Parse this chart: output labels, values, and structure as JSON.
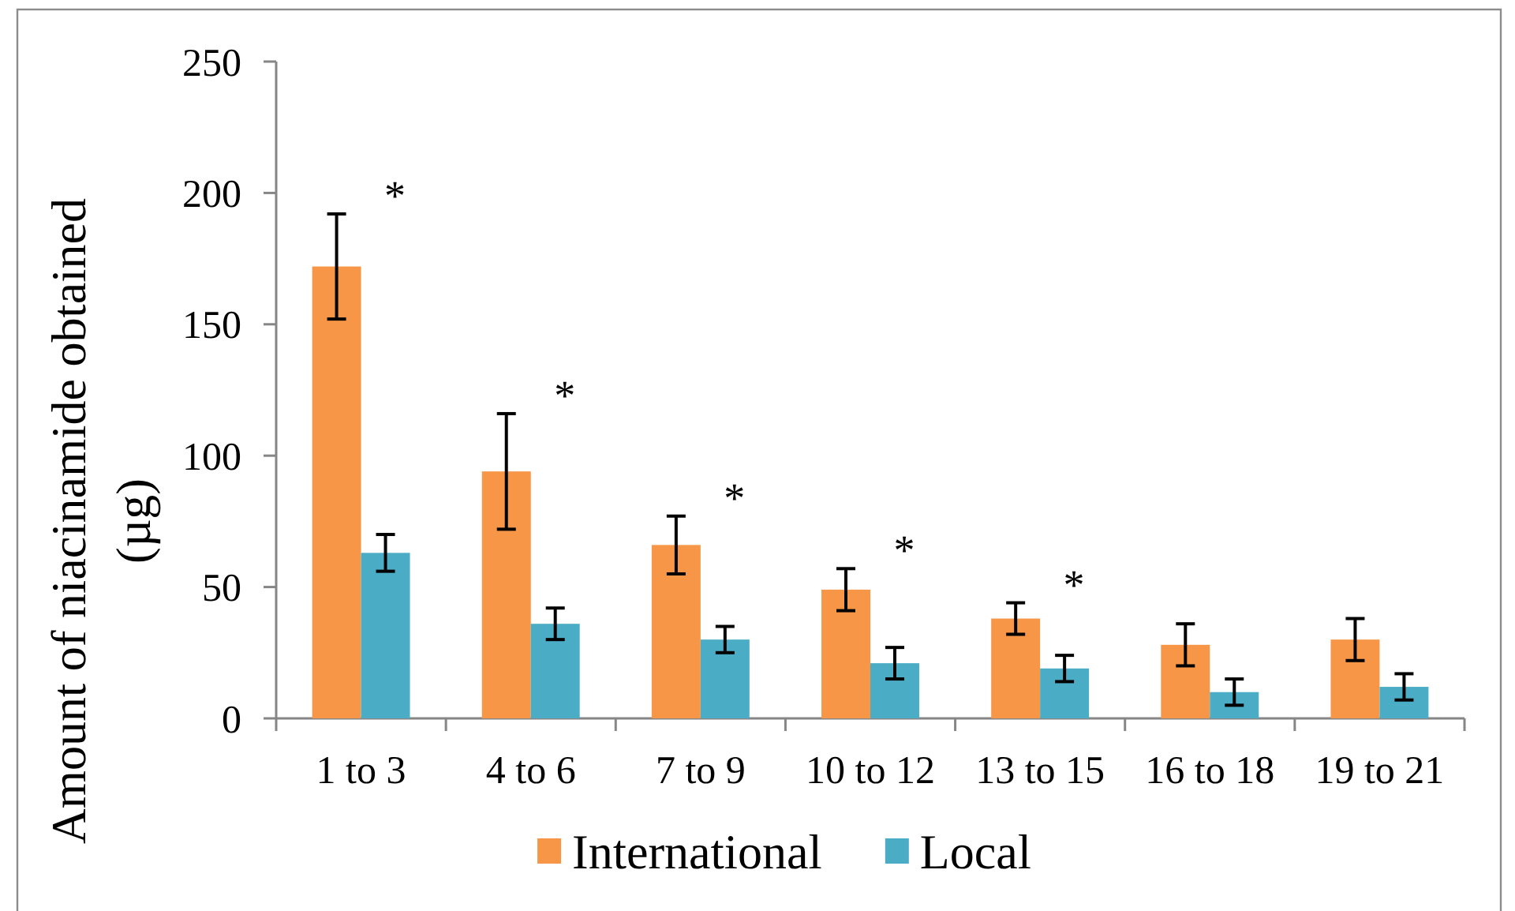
{
  "chart_data": {
    "type": "bar",
    "ylabel": "Amount of niacinamide obtained (µg)",
    "categories": [
      "1 to 3",
      "4 to 6",
      "7 to 9",
      "10 to 12",
      "13 to 15",
      "16 to 18",
      "19 to 21"
    ],
    "series": [
      {
        "name": "International",
        "color": "#f79646",
        "values": [
          172,
          94,
          66,
          49,
          38,
          28,
          30
        ],
        "errors": [
          20,
          22,
          11,
          8,
          6,
          8,
          8
        ]
      },
      {
        "name": "Local",
        "color": "#4bacc6",
        "values": [
          63,
          36,
          30,
          21,
          19,
          10,
          12
        ],
        "errors": [
          7,
          6,
          5,
          6,
          5,
          5,
          5
        ]
      }
    ],
    "ylim": [
      0,
      250
    ],
    "yticks": [
      0,
      50,
      100,
      150,
      200,
      250
    ],
    "legend": "bottom",
    "annotations": [
      "*",
      "*",
      "*",
      "*",
      "*"
    ]
  }
}
